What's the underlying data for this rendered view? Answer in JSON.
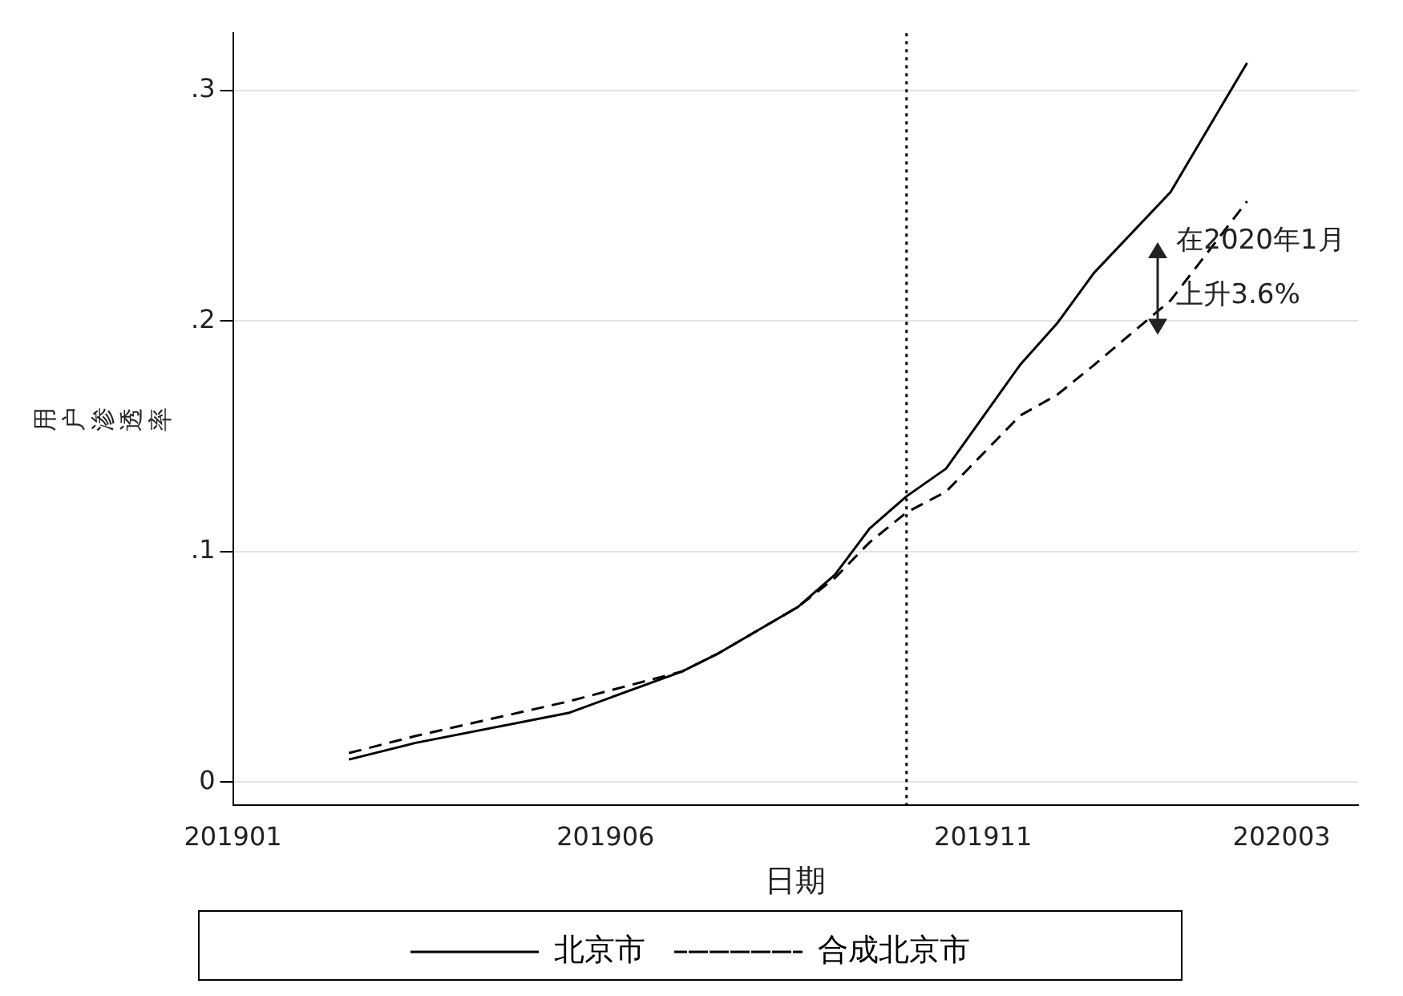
{
  "chart_data": {
    "type": "line",
    "xlabel": "日期",
    "ylabel": "用户渗透率",
    "xlim": [
      "2019-01",
      "2020-04"
    ],
    "xticks": [
      {
        "value": "2019-01",
        "label": "201901"
      },
      {
        "value": "2019-06",
        "label": "201906"
      },
      {
        "value": "2019-11",
        "label": "201911"
      },
      {
        "value": "2020-03",
        "label": "202003"
      }
    ],
    "ylim": [
      -0.01,
      0.325
    ],
    "yticks": [
      0,
      {
        "value": 0.1,
        "label": ".1"
      },
      {
        "value": 0.2,
        "label": ".2"
      },
      {
        "value": 0.3,
        "label": ".3"
      }
    ],
    "series": [
      {
        "name": "北京市",
        "color": "#000000",
        "line_style": "solid",
        "x": [
          "2019-02-17",
          "2019-03-16",
          "2019-05-17",
          "2019-07-02",
          "2019-07-17",
          "2019-08-18",
          "2019-09-02",
          "2019-09-16",
          "2019-10-01",
          "2019-10-17",
          "2019-11-16",
          "2019-12-01",
          "2019-12-16",
          "2020-01-16",
          "2020-02-01",
          "2020-02-16"
        ],
        "values": [
          0.0098,
          0.017,
          0.03,
          0.048,
          0.056,
          0.076,
          0.09,
          0.11,
          0.124,
          0.136,
          0.181,
          0.199,
          0.221,
          0.256,
          0.285,
          0.312
        ]
      },
      {
        "name": "合成北京市",
        "color": "#000000",
        "line_style": "dashed",
        "x": [
          "2019-02-17",
          "2019-03-16",
          "2019-05-17",
          "2019-07-02",
          "2019-07-17",
          "2019-08-18",
          "2019-09-02",
          "2019-09-16",
          "2019-10-01",
          "2019-10-17",
          "2019-11-16",
          "2019-12-01",
          "2019-12-16",
          "2020-01-16",
          "2020-02-16"
        ],
        "values": [
          0.0126,
          0.02,
          0.035,
          0.048,
          0.056,
          0.076,
          0.0886,
          0.104,
          0.117,
          0.126,
          0.159,
          0.168,
          0.181,
          0.209,
          0.252
        ]
      }
    ],
    "ref_lines": [
      {
        "axis": "x",
        "value": "2019-10-01",
        "line_style": "dotted",
        "color": "#000000"
      }
    ],
    "annotations": [
      "在2020年1月",
      "上升3.6%"
    ],
    "grid": "y",
    "legend": "bottom",
    "marker": "none"
  }
}
